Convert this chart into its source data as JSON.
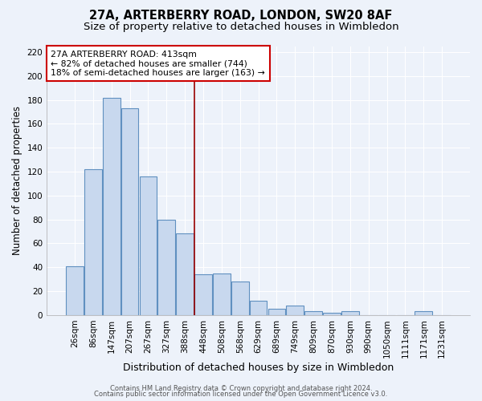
{
  "title": "27A, ARTERBERRY ROAD, LONDON, SW20 8AF",
  "subtitle": "Size of property relative to detached houses in Wimbledon",
  "xlabel": "Distribution of detached houses by size in Wimbledon",
  "ylabel": "Number of detached properties",
  "footer1": "Contains HM Land Registry data © Crown copyright and database right 2024.",
  "footer2": "Contains public sector information licensed under the Open Government Licence v3.0.",
  "bar_labels": [
    "26sqm",
    "86sqm",
    "147sqm",
    "207sqm",
    "267sqm",
    "327sqm",
    "388sqm",
    "448sqm",
    "508sqm",
    "568sqm",
    "629sqm",
    "689sqm",
    "749sqm",
    "809sqm",
    "870sqm",
    "930sqm",
    "990sqm",
    "1050sqm",
    "1111sqm",
    "1171sqm",
    "1231sqm"
  ],
  "bar_values": [
    41,
    122,
    182,
    173,
    116,
    80,
    68,
    34,
    35,
    28,
    12,
    5,
    8,
    3,
    2,
    3,
    0,
    0,
    0,
    3,
    0
  ],
  "bar_color": "#c8d8ee",
  "bar_edge_color": "#6090c0",
  "vline_x": 6.5,
  "vline_color": "#990000",
  "annotation_text": "27A ARTERBERRY ROAD: 413sqm\n← 82% of detached houses are smaller (744)\n18% of semi-detached houses are larger (163) →",
  "annotation_box_color": "#ffffff",
  "annotation_box_edge": "#cc0000",
  "ylim": [
    0,
    225
  ],
  "yticks": [
    0,
    20,
    40,
    60,
    80,
    100,
    120,
    140,
    160,
    180,
    200,
    220
  ],
  "background_color": "#edf2fa",
  "grid_color": "#ffffff",
  "title_fontsize": 10.5,
  "subtitle_fontsize": 9.5,
  "xlabel_fontsize": 9,
  "ylabel_fontsize": 8.5,
  "tick_fontsize": 7.5,
  "footer_fontsize": 6.0
}
